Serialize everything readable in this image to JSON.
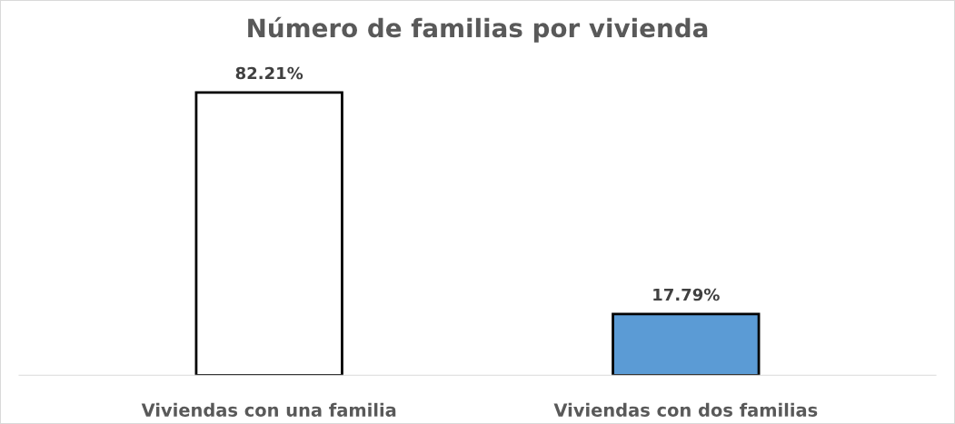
{
  "chart_data": {
    "type": "bar",
    "title": "Número de familias por vivienda",
    "categories": [
      "Viviendas con una familia",
      "Viviendas con dos familias"
    ],
    "values": [
      82.21,
      17.79
    ],
    "value_labels": [
      "82.21%",
      "17.79%"
    ],
    "colors": [
      "#ffffff",
      "#5b9bd5"
    ],
    "grid": false,
    "legend": false
  }
}
